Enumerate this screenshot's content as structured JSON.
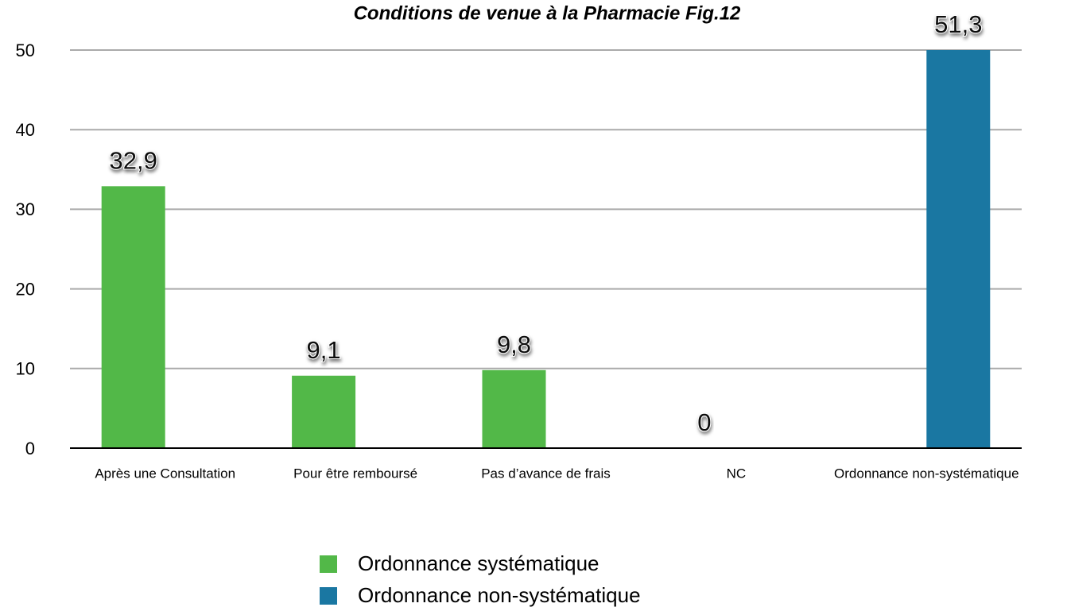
{
  "chart_data": {
    "type": "bar",
    "title": "Conditions de venue à la Pharmacie Fig.12",
    "categories": [
      "Après une Consultation",
      "Pour être remboursé",
      "Pas d’avance de frais",
      "NC",
      "Ordonnance non-systématique"
    ],
    "series": [
      {
        "name": "Ordonnance systématique",
        "color": "#52b848",
        "values": [
          32.9,
          9.1,
          9.8,
          0,
          null
        ],
        "value_labels": [
          "32,9",
          "9,1",
          "9,8",
          "0",
          null
        ]
      },
      {
        "name": "Ordonnance non-systématique",
        "color": "#1a77a2",
        "values": [
          null,
          null,
          null,
          null,
          51.3
        ],
        "value_labels": [
          null,
          null,
          null,
          null,
          "51,3"
        ]
      }
    ],
    "ylim": [
      0,
      50
    ],
    "yticks": [
      0,
      10,
      20,
      30,
      40,
      50
    ],
    "grid": true,
    "legend": "bottom"
  }
}
